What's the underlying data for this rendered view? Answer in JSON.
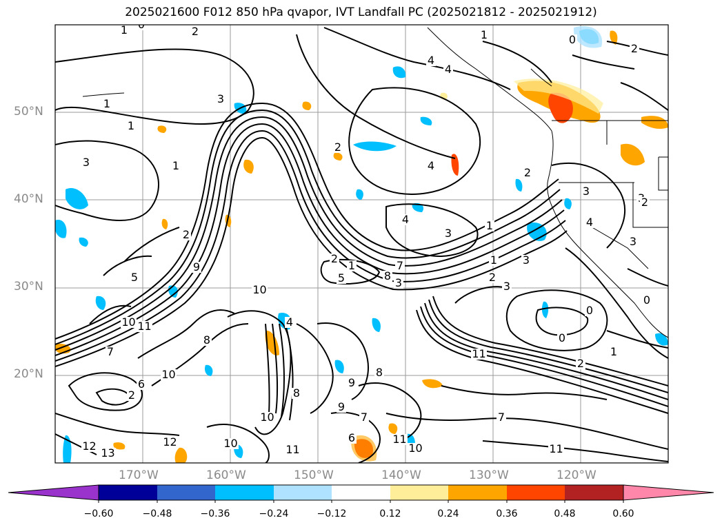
{
  "title": "2025021600 F012 850 hPa qvapor, IVT Landfall PC (2025021812 - 2025021912)",
  "lat_labels": [
    "50°N",
    "40°N",
    "30°N",
    "20°N"
  ],
  "lon_labels": [
    "170°W",
    "160°W",
    "150°W",
    "140°W",
    "130°W",
    "120°W"
  ],
  "colorbar": {
    "colors": [
      "#9933cc",
      "#000099",
      "#3366cc",
      "#00bfff",
      "#aee2ff",
      "#ffffff",
      "#ffee99",
      "#ffa500",
      "#ff4500",
      "#b22222",
      "#ff88aa"
    ],
    "tick_labels": [
      "−0.60",
      "−0.48",
      "−0.36",
      "−0.24",
      "−0.12",
      "0.12",
      "0.24",
      "0.36",
      "0.48",
      "0.60"
    ]
  },
  "contour_labels": [
    "1",
    "0",
    "2",
    "1",
    "3",
    "4",
    "4",
    "1",
    "0",
    "2",
    "1",
    "3",
    "1",
    "2",
    "2",
    "4",
    "3",
    "3",
    "4",
    "1",
    "3",
    "2",
    "5",
    "9",
    "10",
    "2",
    "1",
    "5",
    "8",
    "3",
    "7",
    "1",
    "2",
    "3",
    "3",
    "10",
    "11",
    "7",
    "8",
    "10",
    "6",
    "4",
    "10",
    "11",
    "8",
    "9",
    "8",
    "9",
    "7",
    "6",
    "2",
    "12",
    "13",
    "12",
    "10",
    "11",
    "10",
    "11",
    "11",
    "2",
    "7",
    "0",
    "0",
    "1",
    "3",
    "2",
    "4",
    "0"
  ],
  "legend_extend": "both"
}
